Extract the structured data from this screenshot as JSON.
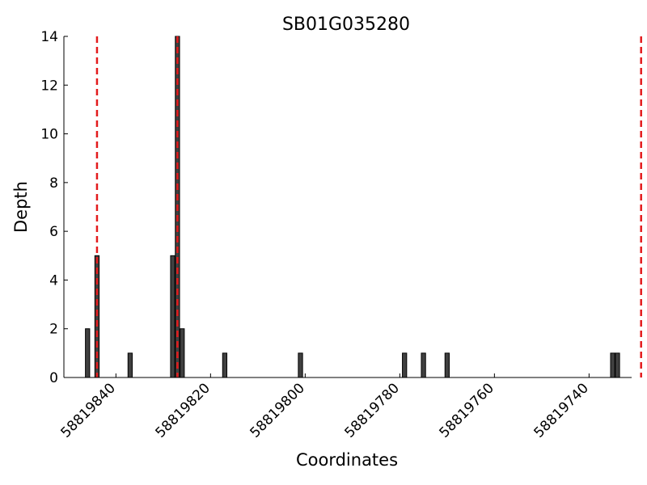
{
  "chart_data": {
    "type": "bar",
    "title": "SB01G035280",
    "xlabel": "Coordinates",
    "ylabel": "Depth",
    "xlim": [
      58819851,
      58819731
    ],
    "x_reversed": true,
    "ylim": [
      0,
      14
    ],
    "yticks": [
      0,
      2,
      4,
      6,
      8,
      10,
      12,
      14
    ],
    "xticks": [
      58819840,
      58819820,
      58819800,
      58819780,
      58819760,
      58819740
    ],
    "xtick_labels": [
      "58819840",
      "58819820",
      "58819800",
      "58819780",
      "58819760",
      "58819740"
    ],
    "x": [
      58819846,
      58819844,
      58819837,
      58819828,
      58819827,
      58819826,
      58819817,
      58819801,
      58819779,
      58819775,
      58819770,
      58819735,
      58819734
    ],
    "values": [
      2,
      5,
      1,
      5,
      14,
      2,
      1,
      1,
      1,
      1,
      1,
      1,
      1
    ],
    "bar_color": "#404040",
    "reference_lines": [
      58819844,
      58819827,
      58819729
    ],
    "reference_line_color": "#e31a1c",
    "grid": false
  }
}
